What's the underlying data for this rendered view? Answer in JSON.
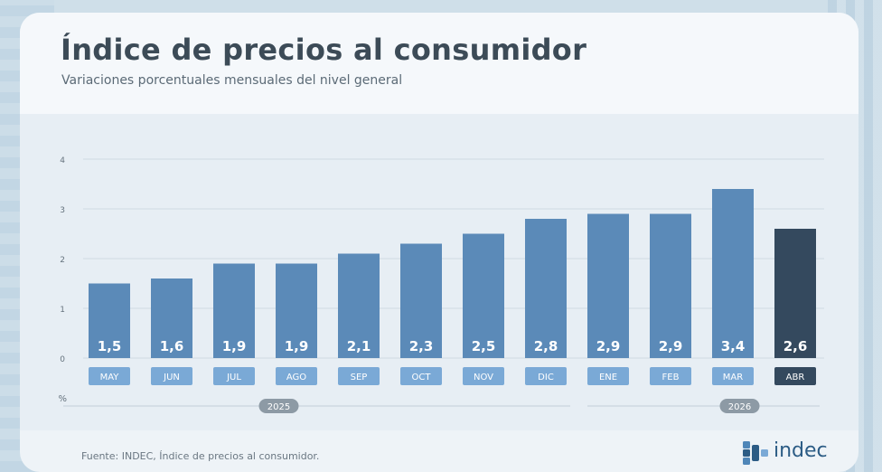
{
  "title": "Índice de precios al consumidor",
  "subtitle": "Variaciones porcentuales mensuales del nivel general",
  "source": "Fuente: INDEC, Índice de precios al consumidor.",
  "logo_text": "indec",
  "colors": {
    "bar": "#5b8ab8",
    "bar_highlight": "#34495e",
    "month_label_bg": "#7aa9d6",
    "month_label_bg_highlight": "#34495e",
    "grid": "#cfd9e2",
    "axis_text": "#66737e",
    "title": "#3c4b57"
  },
  "chart_data": {
    "type": "bar",
    "categories": [
      "MAY",
      "JUN",
      "JUL",
      "AGO",
      "SEP",
      "OCT",
      "NOV",
      "DIC",
      "ENE",
      "FEB",
      "MAR",
      "ABR"
    ],
    "values": [
      1.5,
      1.6,
      1.9,
      1.9,
      2.1,
      2.3,
      2.5,
      2.8,
      2.9,
      2.9,
      3.4,
      2.6
    ],
    "value_labels": [
      "1,5",
      "1,6",
      "1,9",
      "1,9",
      "2,1",
      "2,3",
      "2,5",
      "2,8",
      "2,9",
      "2,9",
      "3,4",
      "2,6"
    ],
    "highlight_index": 11,
    "ylim": [
      0,
      4
    ],
    "yticks": [
      0,
      1,
      2,
      3,
      4
    ],
    "ylabel": "%",
    "year_groups": [
      {
        "label": "2025",
        "from": 0,
        "to": 7
      },
      {
        "label": "2026",
        "from": 8,
        "to": 11
      }
    ],
    "grid": true
  }
}
